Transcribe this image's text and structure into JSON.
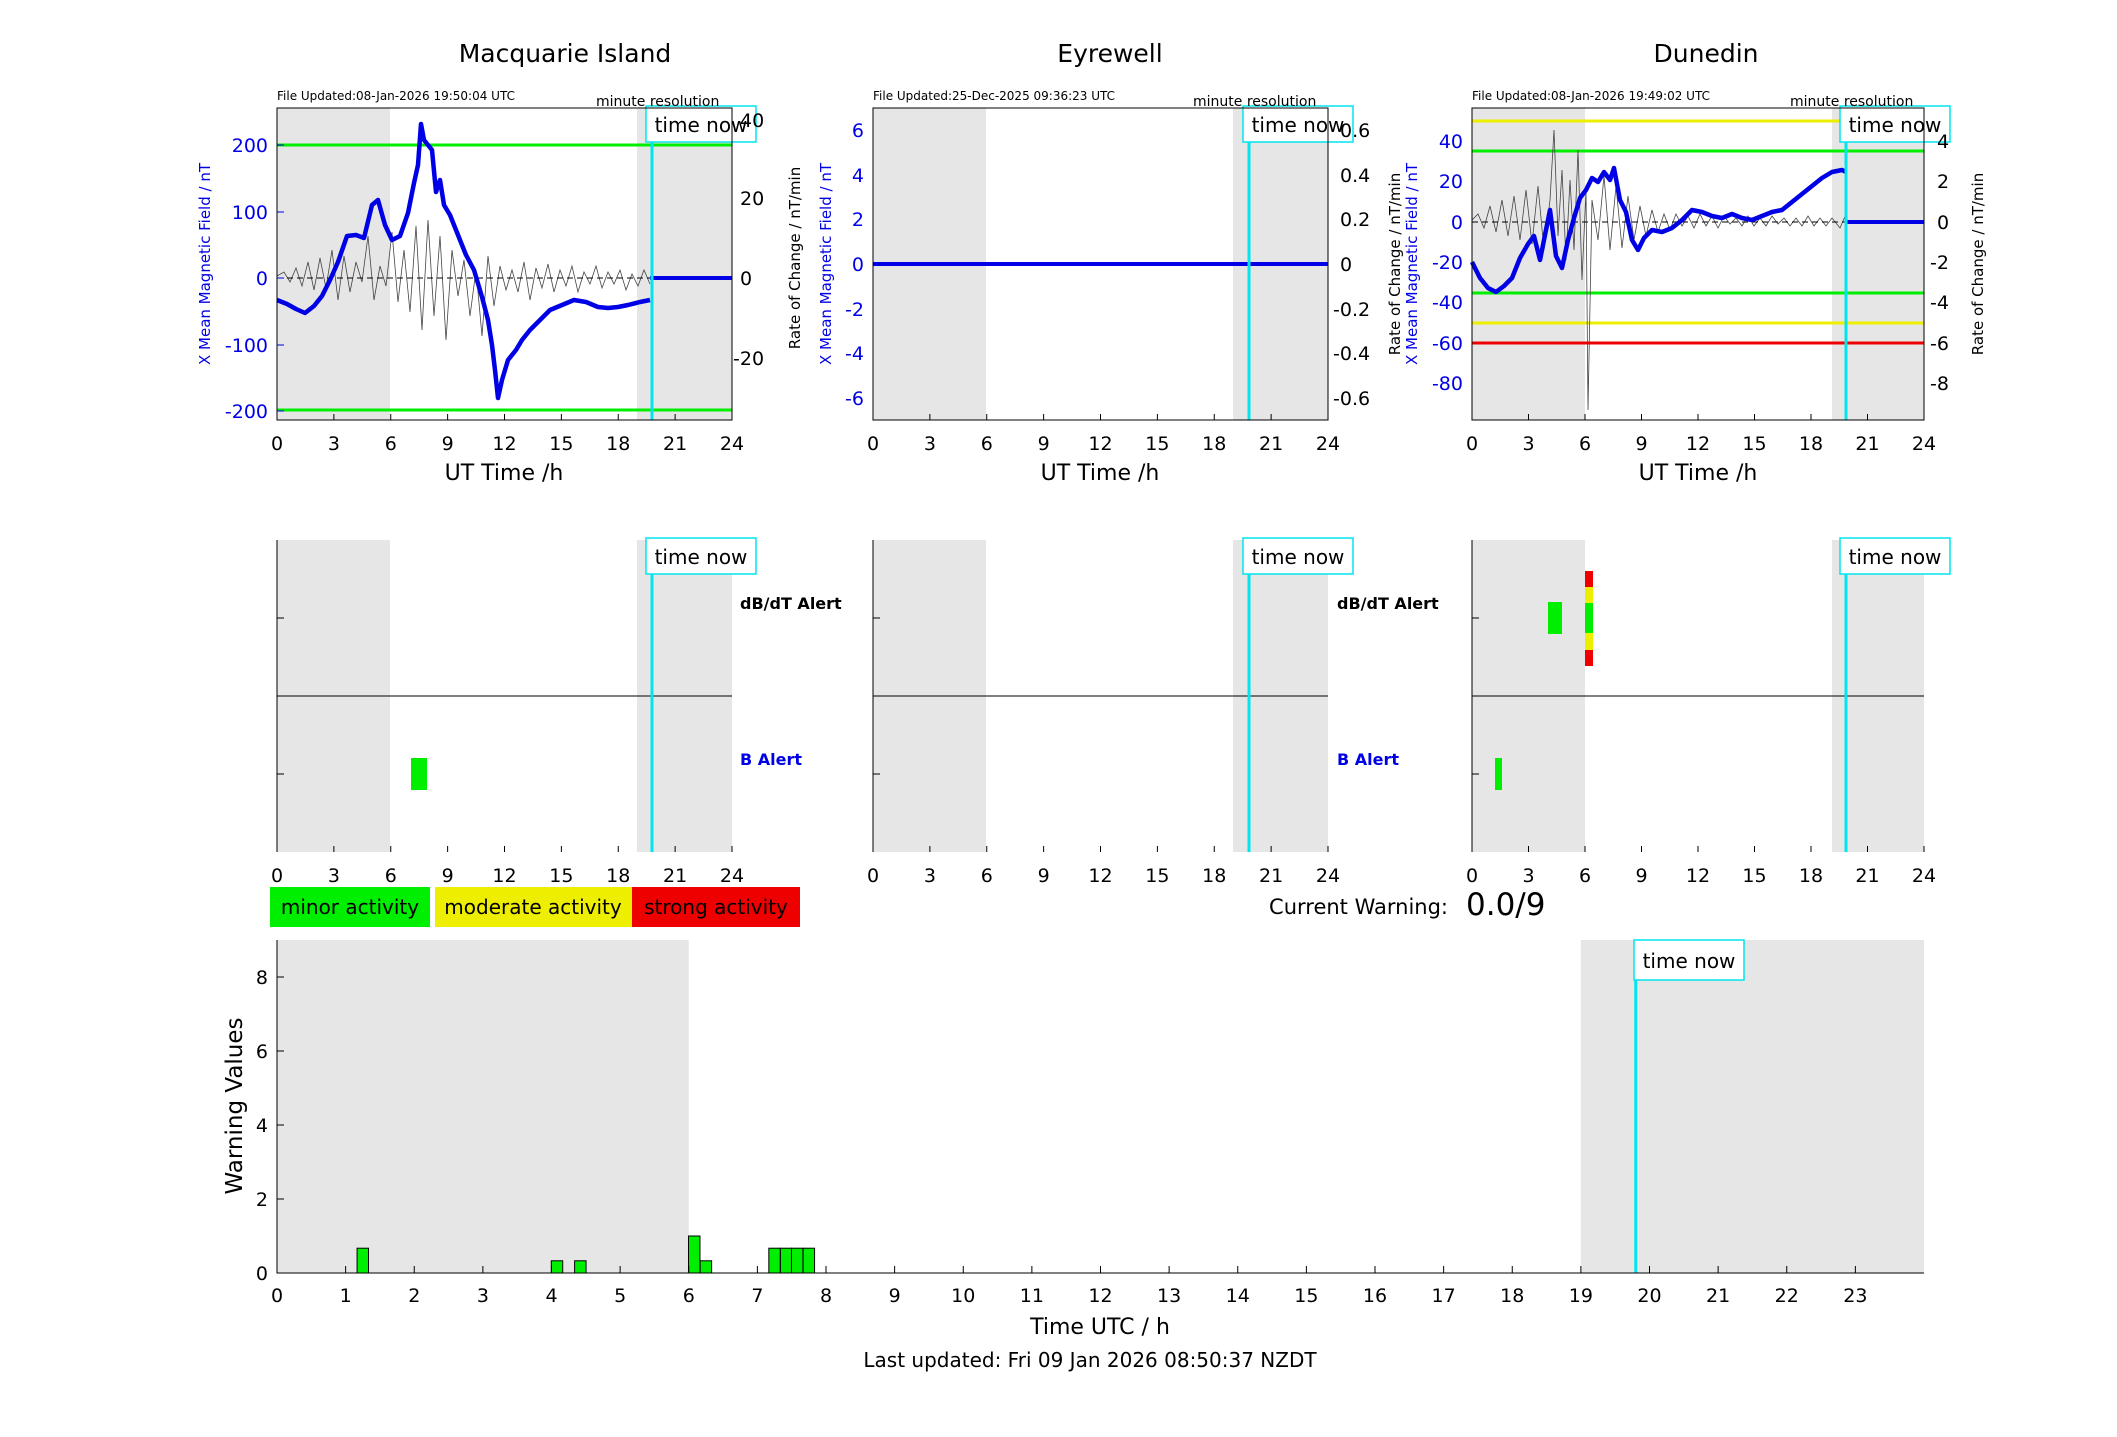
{
  "colors": {
    "trace": "#0000e6",
    "rate": "#555555",
    "night": "#e6e6e6",
    "cyan": "#00e5ee",
    "green": "#00ee00",
    "yellow": "#eeee00",
    "red": "#ee0000"
  },
  "common": {
    "x_ticks": [
      "0",
      "3",
      "6",
      "9",
      "12",
      "15",
      "18",
      "21",
      "24"
    ],
    "xlabel": "UT Time /h",
    "ylabel_left": "X Mean Magnetic Field / nT",
    "ylabel_right": "Rate of Change / nT/min",
    "time_now_label": "time now",
    "resolution_label": "minute resolution",
    "dbdt_alert_label": "dB/dT Alert",
    "b_alert_label": "B Alert"
  },
  "stations": [
    {
      "name": "Macquarie Island",
      "file_updated": "File Updated:08-Jan-2026 19:50:04 UTC",
      "left_ticks": [
        "200",
        "100",
        "0",
        "-100",
        "-200"
      ],
      "right_ticks": [
        "40",
        "20",
        "0",
        "-20"
      ],
      "show_dbdt_label": true,
      "show_b_label": true
    },
    {
      "name": "Eyrewell",
      "file_updated": "File Updated:25-Dec-2025 09:36:23 UTC",
      "left_ticks": [
        "6",
        "4",
        "2",
        "0",
        "-2",
        "-4",
        "-6"
      ],
      "right_ticks": [
        "0.6",
        "0.4",
        "0.2",
        "0",
        "-0.2",
        "-0.4",
        "-0.6"
      ],
      "show_dbdt_label": true,
      "show_b_label": true
    },
    {
      "name": "Dunedin",
      "file_updated": "File Updated:08-Jan-2026 19:49:02 UTC",
      "left_ticks": [
        "40",
        "20",
        "0",
        "-20",
        "-40",
        "-60",
        "-80"
      ],
      "right_ticks": [
        "4",
        "2",
        "0",
        "-2",
        "-4",
        "-6",
        "-8"
      ],
      "show_dbdt_label": false,
      "show_b_label": false
    }
  ],
  "legend": {
    "minor": "minor activity",
    "moderate": "moderate activity",
    "strong": "strong activity"
  },
  "current_warning": {
    "label": "Current Warning:",
    "value": "0.0/9"
  },
  "warning_chart": {
    "ylabel": "Warning Values",
    "xlabel": "Time UTC / h",
    "y_ticks": [
      "0",
      "2",
      "4",
      "6",
      "8"
    ],
    "x_ticks": [
      "0",
      "1",
      "2",
      "3",
      "4",
      "5",
      "6",
      "7",
      "8",
      "9",
      "10",
      "11",
      "12",
      "13",
      "14",
      "15",
      "16",
      "17",
      "18",
      "19",
      "20",
      "21",
      "22",
      "23"
    ],
    "time_now_label": "time now"
  },
  "footer": "Last updated: Fri 09 Jan 2026 08:50:37 NZDT",
  "chart_data": [
    {
      "type": "line",
      "title": "Macquarie Island",
      "xlabel": "UT Time /h",
      "ylabel": "X Mean Magnetic Field / nT",
      "y2label": "Rate of Change / nT/min",
      "xlim": [
        0,
        24
      ],
      "ylim": [
        -215,
        250
      ],
      "y2lim": [
        -35,
        40
      ],
      "night_bands": [
        [
          0,
          6
        ],
        [
          19,
          24
        ]
      ],
      "time_now": 19.85,
      "thresholds": [
        {
          "value": 200,
          "color": "green"
        },
        {
          "value": -200,
          "color": "green"
        }
      ],
      "series": [
        {
          "x": [
            0,
            0.5,
            1,
            1.5,
            2,
            2.5,
            3,
            3.5,
            4,
            4.5,
            5,
            5.5,
            6,
            6.5,
            7,
            7.25,
            7.5,
            7.75,
            8,
            8.25,
            8.5,
            9,
            9.5,
            10,
            10.5,
            10.75,
            11,
            11.25,
            11.5,
            12,
            12.5,
            13,
            13.5,
            14,
            14.5,
            15,
            15.5,
            16,
            16.5,
            17,
            17.5,
            18,
            18.5,
            19,
            19.2,
            19.85,
            24
          ],
          "values": [
            -40,
            -50,
            -60,
            -65,
            -45,
            -15,
            25,
            60,
            55,
            130,
            90,
            55,
            70,
            120,
            160,
            230,
            200,
            145,
            175,
            120,
            70,
            40,
            -20,
            -50,
            -90,
            -140,
            -200,
            -175,
            -150,
            -120,
            -90,
            -70,
            -45,
            -30,
            -25,
            -35,
            -40,
            -45,
            -45,
            -50,
            -50,
            -45,
            -40,
            -35,
            -30,
            0,
            0
          ]
        }
      ]
    },
    {
      "type": "line",
      "title": "Eyrewell",
      "xlabel": "UT Time /h",
      "ylabel": "X Mean Magnetic Field / nT",
      "y2label": "Rate of Change / nT/min",
      "xlim": [
        0,
        24
      ],
      "ylim": [
        -7,
        7
      ],
      "y2lim": [
        -0.7,
        0.7
      ],
      "night_bands": [
        [
          0,
          6
        ],
        [
          19,
          24
        ]
      ],
      "time_now": 19.85,
      "series": [
        {
          "x": [
            0,
            24
          ],
          "values": [
            0,
            0
          ]
        }
      ]
    },
    {
      "type": "line",
      "title": "Dunedin",
      "xlabel": "UT Time /h",
      "ylabel": "X Mean Magnetic Field / nT",
      "y2label": "Rate of Change / nT/min",
      "xlim": [
        0,
        24
      ],
      "ylim": [
        -92,
        55
      ],
      "y2lim": [
        -9.2,
        5.5
      ],
      "night_bands": [
        [
          0,
          6
        ],
        [
          19,
          24
        ]
      ],
      "time_now": 19.85,
      "thresholds": [
        {
          "value": 50,
          "color": "yellow"
        },
        {
          "value": 35,
          "color": "green"
        },
        {
          "value": -35,
          "color": "green"
        },
        {
          "value": -50,
          "color": "yellow"
        },
        {
          "value": -60,
          "color": "red"
        }
      ],
      "series": [
        {
          "x": [
            0,
            0.5,
            1,
            1.5,
            2,
            2.5,
            3,
            3.5,
            4,
            4.5,
            5,
            5.5,
            6,
            6.5,
            7,
            7.5,
            8,
            8.5,
            9,
            9.5,
            10,
            11,
            12,
            13,
            14,
            15,
            16,
            17,
            18,
            18.5,
            19,
            19.3,
            19.85,
            24
          ],
          "values": [
            -15,
            -25,
            -30,
            -32,
            -25,
            -20,
            -10,
            -5,
            -20,
            0,
            -30,
            -15,
            10,
            20,
            25,
            20,
            28,
            0,
            -10,
            -15,
            -10,
            -5,
            0,
            -3,
            0,
            0,
            2,
            5,
            15,
            22,
            25,
            24,
            0,
            0
          ]
        }
      ]
    },
    {
      "type": "bar",
      "title": "",
      "xlabel": "Time UTC / h",
      "ylabel": "Warning Values",
      "xlim": [
        0,
        24
      ],
      "ylim": [
        0,
        9
      ],
      "night_bands": [
        [
          0,
          6
        ],
        [
          19,
          24
        ]
      ],
      "time_now": 19.8,
      "x": [
        1.25,
        4.08,
        4.42,
        6.08,
        6.25,
        7.25,
        7.42,
        7.58,
        7.75
      ],
      "values": [
        0.67,
        0.33,
        0.33,
        1.0,
        0.33,
        0.67,
        0.67,
        0.67,
        0.67
      ]
    }
  ],
  "alerts": [
    {
      "station": "Macquarie Island",
      "dbdt": [],
      "b": [
        {
          "t": 7.5,
          "color": "green"
        }
      ]
    },
    {
      "station": "Eyrewell",
      "dbdt": [],
      "b": []
    },
    {
      "station": "Dunedin",
      "dbdt": [
        {
          "t": 4.3,
          "color": "green"
        },
        {
          "t": 6.3,
          "color": "mixed"
        }
      ],
      "b": [
        {
          "t": 1.3,
          "color": "green"
        }
      ]
    }
  ]
}
